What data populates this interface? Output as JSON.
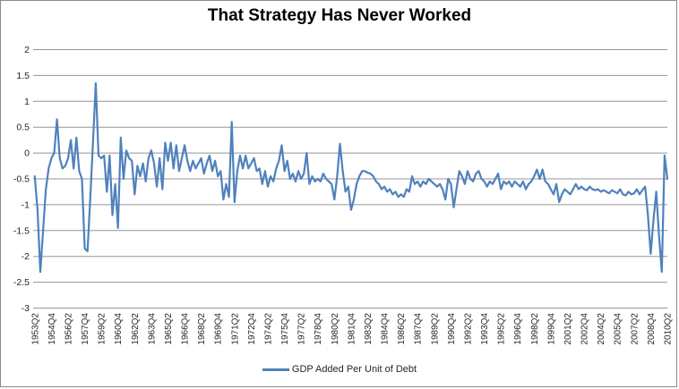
{
  "window": {
    "background": "#ffffff",
    "border_color": "#8a8a8a"
  },
  "legend": {
    "position": "bottom"
  },
  "chart_data": {
    "type": "line",
    "title": "That Strategy Has Never Worked",
    "xlabel": "",
    "ylabel": "",
    "ylim": [
      -3,
      2
    ],
    "grid": true,
    "legend_position": "bottom",
    "colors": {
      "series": "#4F81BD",
      "gridline": "#949494",
      "axis_text": "#262626",
      "title_text": "#000000"
    },
    "y_ticks": [
      "2",
      "1.5",
      "1",
      "0.5",
      "0",
      "-0.5",
      "-1",
      "-1.5",
      "-2",
      "-2.5",
      "-3"
    ],
    "x_tick_every": 6,
    "x_tick_labels": [
      "1953Q2",
      "1954Q4",
      "1956Q2",
      "1957Q4",
      "1959Q2",
      "1960Q4",
      "1962Q2",
      "1963Q4",
      "1965Q2",
      "1966Q4",
      "1968Q2",
      "1969Q4",
      "1971Q2",
      "1972Q4",
      "1974Q2",
      "1975Q4",
      "1977Q2",
      "1978Q4",
      "1980Q2",
      "1981Q4",
      "1983Q2",
      "1984Q4",
      "1986Q2",
      "1987Q4",
      "1989Q2",
      "1990Q4",
      "1992Q2",
      "1993Q4",
      "1995Q2",
      "1996Q4",
      "1998Q2",
      "1999Q4",
      "2001Q2",
      "2002Q4",
      "2004Q2",
      "2005Q4",
      "2007Q2",
      "2008Q4",
      "2010Q2"
    ],
    "series": [
      {
        "name": "GDP Added Per Unit of Debt",
        "values": [
          -0.45,
          -1.1,
          -2.3,
          -1.5,
          -0.7,
          -0.3,
          -0.1,
          0.0,
          0.65,
          -0.1,
          -0.3,
          -0.25,
          -0.1,
          0.25,
          -0.3,
          0.3,
          -0.35,
          -0.5,
          -1.85,
          -1.9,
          -0.9,
          0.2,
          1.35,
          -0.05,
          -0.1,
          -0.05,
          -0.75,
          -0.05,
          -1.2,
          -0.6,
          -1.45,
          0.3,
          -0.5,
          0.05,
          -0.1,
          -0.15,
          -0.8,
          -0.25,
          -0.45,
          -0.2,
          -0.55,
          -0.1,
          0.05,
          -0.2,
          -0.65,
          -0.1,
          -0.7,
          0.2,
          -0.15,
          0.2,
          -0.3,
          0.15,
          -0.35,
          -0.1,
          0.15,
          -0.15,
          -0.35,
          -0.15,
          -0.3,
          -0.2,
          -0.1,
          -0.4,
          -0.2,
          -0.05,
          -0.35,
          -0.15,
          -0.45,
          -0.35,
          -0.9,
          -0.6,
          -0.85,
          0.6,
          -0.95,
          -0.35,
          -0.05,
          -0.3,
          -0.05,
          -0.3,
          -0.2,
          -0.1,
          -0.35,
          -0.3,
          -0.6,
          -0.35,
          -0.65,
          -0.45,
          -0.55,
          -0.3,
          -0.15,
          0.15,
          -0.35,
          -0.15,
          -0.5,
          -0.4,
          -0.55,
          -0.35,
          -0.5,
          -0.4,
          0.0,
          -0.6,
          -0.45,
          -0.55,
          -0.5,
          -0.55,
          -0.4,
          -0.5,
          -0.55,
          -0.6,
          -0.9,
          -0.45,
          0.18,
          -0.35,
          -0.75,
          -0.65,
          -1.1,
          -0.9,
          -0.6,
          -0.45,
          -0.35,
          -0.35,
          -0.38,
          -0.4,
          -0.45,
          -0.55,
          -0.6,
          -0.7,
          -0.65,
          -0.75,
          -0.7,
          -0.8,
          -0.75,
          -0.85,
          -0.8,
          -0.85,
          -0.7,
          -0.75,
          -0.45,
          -0.6,
          -0.55,
          -0.65,
          -0.55,
          -0.6,
          -0.5,
          -0.55,
          -0.6,
          -0.65,
          -0.6,
          -0.7,
          -0.9,
          -0.5,
          -0.6,
          -1.05,
          -0.7,
          -0.35,
          -0.45,
          -0.6,
          -0.35,
          -0.5,
          -0.55,
          -0.4,
          -0.35,
          -0.5,
          -0.55,
          -0.65,
          -0.55,
          -0.6,
          -0.5,
          -0.4,
          -0.7,
          -0.55,
          -0.6,
          -0.55,
          -0.65,
          -0.55,
          -0.6,
          -0.65,
          -0.55,
          -0.7,
          -0.6,
          -0.55,
          -0.45,
          -0.32,
          -0.5,
          -0.32,
          -0.55,
          -0.6,
          -0.7,
          -0.8,
          -0.6,
          -0.95,
          -0.8,
          -0.7,
          -0.75,
          -0.8,
          -0.7,
          -0.6,
          -0.7,
          -0.65,
          -0.7,
          -0.72,
          -0.65,
          -0.7,
          -0.72,
          -0.7,
          -0.75,
          -0.72,
          -0.75,
          -0.78,
          -0.72,
          -0.75,
          -0.78,
          -0.7,
          -0.8,
          -0.82,
          -0.75,
          -0.8,
          -0.78,
          -0.7,
          -0.8,
          -0.72,
          -0.65,
          -1.2,
          -1.95,
          -1.3,
          -0.75,
          -1.6,
          -2.3,
          -0.05,
          -0.5
        ]
      }
    ]
  }
}
